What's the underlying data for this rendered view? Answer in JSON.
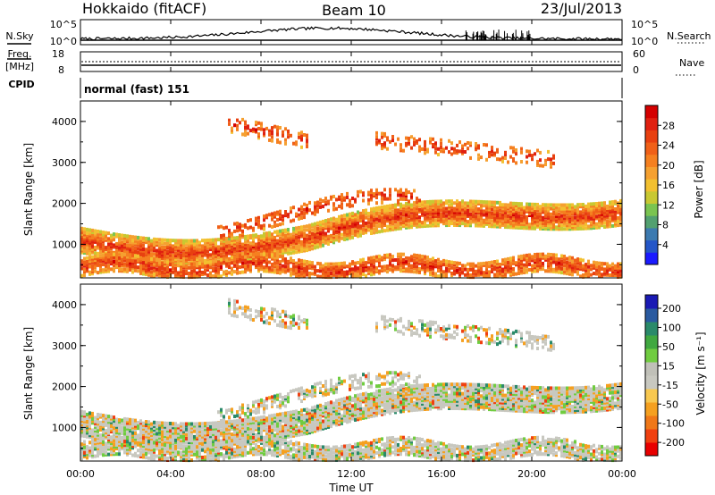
{
  "header": {
    "station": "Hokkaido (fitACF)",
    "beam": "Beam 10",
    "date": "23/Jul/2013"
  },
  "top_panels": {
    "nsky": {
      "label": "N.Sky",
      "ticks": [
        "10^5",
        "10^0"
      ]
    },
    "nsearch": {
      "label": "N.Search",
      "ticks": [
        "10^5",
        "10^0"
      ]
    },
    "freq": {
      "label": "Freq.",
      "unit": "[MHz]",
      "ticks": [
        "18",
        "8"
      ]
    },
    "nave": {
      "label": "Nave",
      "ticks": [
        "60",
        "0"
      ]
    },
    "cpid": {
      "label": "CPID",
      "value": "normal (fast) 151"
    }
  },
  "x_axis": {
    "title": "Time UT",
    "ticks": [
      "00:00",
      "04:00",
      "08:00",
      "12:00",
      "16:00",
      "20:00",
      "00:00"
    ]
  },
  "chart_data": [
    {
      "type": "heatmap",
      "name": "power",
      "ylabel": "Slant Range [km]",
      "yticks": [
        "1000",
        "2000",
        "3000",
        "4000"
      ],
      "ylim": [
        180,
        4500
      ],
      "xlim_hours": [
        0,
        24
      ],
      "colorbar": {
        "label": "Power [dB]",
        "ticks": [
          "28",
          "24",
          "20",
          "16",
          "12",
          "8",
          "4"
        ],
        "range": [
          0,
          32
        ],
        "colors": [
          "#1a1aff",
          "#2456c8",
          "#3c7ab0",
          "#52a070",
          "#7ac450",
          "#c8c832",
          "#f2c030",
          "#f5a030",
          "#f58020",
          "#f06018",
          "#e84010",
          "#e02010",
          "#d40000"
        ]
      }
    },
    {
      "type": "heatmap",
      "name": "velocity",
      "ylabel": "Slant Range [km]",
      "yticks": [
        "1000",
        "2000",
        "3000",
        "4000"
      ],
      "ylim": [
        180,
        4500
      ],
      "xlim_hours": [
        0,
        24
      ],
      "colorbar": {
        "label": "Velocity [m s⁻¹]",
        "ticks": [
          "200",
          "100",
          "50",
          "15",
          "-15",
          "-50",
          "-100",
          "-200"
        ],
        "range": [
          -250,
          250
        ],
        "colors": [
          "#e80000",
          "#f04010",
          "#f07818",
          "#f5a020",
          "#f8c850",
          "#c8c8c0",
          "#c0c0b8",
          "#70cc40",
          "#40a840",
          "#2a8a6a",
          "#2a5aa0",
          "#1a1ab4"
        ]
      }
    }
  ]
}
